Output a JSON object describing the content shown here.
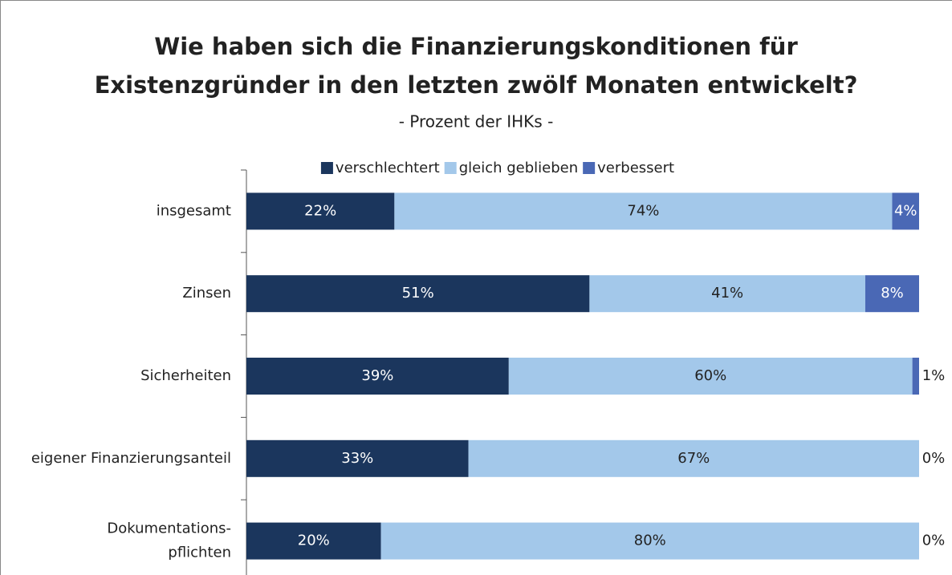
{
  "chart_data": {
    "type": "stacked-bar-horizontal",
    "title": "Wie haben sich die Finanzierungskonditionen für\nExistenzgründer in den letzten zwölf Monaten entwickelt?",
    "subtitle": "- Prozent der IHKs -",
    "categories": [
      "insgesamt",
      "Zinsen",
      "Sicherheiten",
      "eigener Finanzierungsanteil",
      "Dokumentations-\npflichten"
    ],
    "legend": "top",
    "series": [
      {
        "name": "verschlechtert",
        "color": "#1b365d",
        "values": [
          22,
          51,
          39,
          33,
          20
        ],
        "value_labels": [
          "22%",
          "51%",
          "39%",
          "33%",
          "20%"
        ]
      },
      {
        "name": "gleich geblieben",
        "color": "#a3c8ea",
        "values": [
          74,
          41,
          60,
          67,
          80
        ],
        "value_labels": [
          "74%",
          "41%",
          "60%",
          "67%",
          "80%"
        ]
      },
      {
        "name": "verbessert",
        "color": "#4a68b5",
        "values": [
          4,
          8,
          1,
          0,
          0
        ],
        "value_labels": [
          "4%",
          "8%",
          "1%",
          "0%",
          "0%"
        ]
      }
    ]
  }
}
